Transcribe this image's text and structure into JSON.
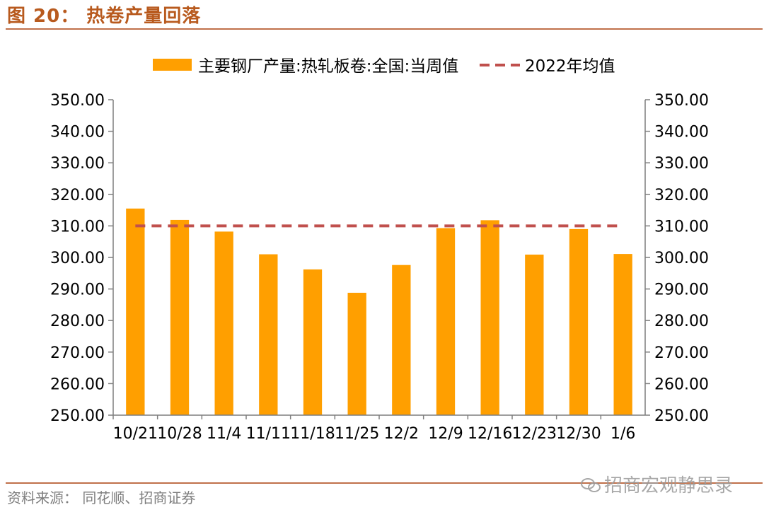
{
  "figure": {
    "title": "图 20： 热卷产量回落",
    "source": "资料来源： 同花顺、招商证券",
    "watermark": "招商宏观静思录"
  },
  "colors": {
    "bar": "#FF9F00",
    "avg_line": "#C0504D",
    "axis": "#7f7f7f",
    "text": "#000000",
    "title": "#b85a1e"
  },
  "chart_data": {
    "type": "bar",
    "title": "",
    "xlabel": "",
    "ylabel": "",
    "categories": [
      "10/21",
      "10/28",
      "11/4",
      "11/11",
      "11/18",
      "11/25",
      "12/2",
      "12/9",
      "12/16",
      "12/23",
      "12/30",
      "1/6"
    ],
    "series": [
      {
        "name": "主要钢厂产量:热轧板卷:全国:当周值",
        "type": "bar",
        "values": [
          315.5,
          311.9,
          308.2,
          301.0,
          296.2,
          288.8,
          297.6,
          309.3,
          311.8,
          300.9,
          309.0,
          301.1
        ]
      },
      {
        "name": "2022年均值",
        "type": "line-dashed",
        "values": [
          310.0,
          310.0,
          310.0,
          310.0,
          310.0,
          310.0,
          310.0,
          310.0,
          310.0,
          310.0,
          310.0,
          310.0
        ]
      }
    ],
    "ylim": [
      250,
      350
    ],
    "y_ticks": [
      "250.00",
      "260.00",
      "270.00",
      "280.00",
      "290.00",
      "300.00",
      "310.00",
      "320.00",
      "330.00",
      "340.00",
      "350.00"
    ],
    "y2_ticks": [
      "250.00",
      "260.00",
      "270.00",
      "280.00",
      "290.00",
      "300.00",
      "310.00",
      "320.00",
      "330.00",
      "340.00",
      "350.00"
    ],
    "legend_position": "top",
    "grid": false
  }
}
